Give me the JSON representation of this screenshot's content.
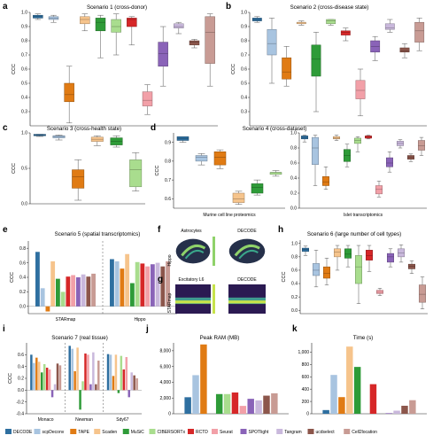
{
  "colors": {
    "DECODE": "#2e6fa0",
    "scpDeconv": "#a8c4e0",
    "TAPE": "#e07b14",
    "Scaden": "#f6c48c",
    "MuSiC": "#2e9b38",
    "CIBERSORTx": "#a9dd8e",
    "RCTD": "#d62728",
    "Seurat": "#f2a0a8",
    "SPOTlight": "#8a63b8",
    "Tangram": "#c9b8dc",
    "ucdselect": "#8c564b",
    "Cell2location": "#c89b94"
  },
  "legend": [
    "DECODE",
    "scpDeconv",
    "TAPE",
    "Scaden",
    "MuSiC",
    "CIBERSORTx",
    "RCTD",
    "Seurat",
    "SPOTlight",
    "Tangram",
    "ucdselect",
    "Cell2location"
  ],
  "panels": {
    "a": {
      "label": "a",
      "title": "Scenario 1 (cross-donor)",
      "ylabel": "CCC"
    },
    "b": {
      "label": "b",
      "title": "Scenario 2 (cross-disease state)",
      "ylabel": "CCC"
    },
    "c": {
      "label": "c",
      "title": "Scenario 3 (cross-health state)",
      "ylabel": "CCC"
    },
    "d": {
      "label": "d",
      "title": "Scenario 4 (cross-dataset)",
      "ylabel": "CCC",
      "sub1": "Murine cell line proteomics",
      "sub2": "Islet transcriptomics"
    },
    "e": {
      "label": "e",
      "title": "Scenario 5 (spatial transcriptomics)",
      "ylabel": "CCC",
      "groups": [
        "STARmap",
        "Hippo"
      ]
    },
    "f": {
      "label": "f",
      "left_title": "Astrocytes",
      "right_title": "DECODE",
      "ylabel": "Hippo"
    },
    "g": {
      "label": "g",
      "left_title": "Excitatory L6",
      "right_title": "DECODE",
      "ylabel": "STARmap"
    },
    "h": {
      "label": "h",
      "title": "Scenario 6 (large number of cell types)",
      "ylabel": "CCC"
    },
    "i": {
      "label": "i",
      "title": "Scenario 7 (real tissue)",
      "ylabel": "CCC",
      "groups": [
        "Monaco",
        "Newman",
        "Sdy67"
      ]
    },
    "j": {
      "label": "j",
      "title": "Peak RAM (MB)"
    },
    "k": {
      "label": "k",
      "title": "Time (s)"
    }
  },
  "chart_data": [
    {
      "id": "a",
      "type": "box",
      "title": "Scenario 1 (cross-donor)",
      "ylabel": "CCC",
      "ylim": [
        0.2,
        1.0
      ],
      "yticks": [
        0.3,
        0.4,
        0.5,
        0.6,
        0.7,
        0.8,
        0.9,
        1.0
      ],
      "methods": [
        "DECODE",
        "scpDeconv",
        "TAPE",
        "Scaden",
        "MuSiC",
        "CIBERSORTx",
        "RCTD",
        "Seurat",
        "SPOTlight",
        "Tangram",
        "ucdselect",
        "Cell2location"
      ],
      "boxes": [
        [
          0.95,
          0.96,
          0.97,
          0.98,
          0.99
        ],
        [
          0.93,
          0.95,
          0.96,
          0.97,
          0.98
        ],
        [
          0.22,
          0.37,
          0.42,
          0.5,
          0.62
        ],
        [
          0.87,
          0.92,
          0.95,
          0.97,
          0.99
        ],
        [
          0.68,
          0.87,
          0.93,
          0.96,
          0.98
        ],
        [
          0.7,
          0.86,
          0.9,
          0.95,
          0.99
        ],
        [
          0.77,
          0.9,
          0.95,
          0.96,
          0.97
        ],
        [
          0.28,
          0.34,
          0.38,
          0.44,
          0.49
        ],
        [
          0.48,
          0.62,
          0.71,
          0.79,
          0.9
        ],
        [
          0.85,
          0.89,
          0.9,
          0.92,
          0.93
        ],
        [
          0.75,
          0.77,
          0.79,
          0.8,
          0.81
        ],
        [
          0.48,
          0.64,
          0.86,
          0.97,
          0.99
        ]
      ]
    },
    {
      "id": "b",
      "type": "box",
      "title": "Scenario 2 (cross-disease state)",
      "ylabel": "CCC",
      "ylim": [
        0.2,
        1.0
      ],
      "yticks": [
        0.3,
        0.4,
        0.5,
        0.6,
        0.7,
        0.8,
        0.9,
        1.0
      ],
      "methods": [
        "DECODE",
        "scpDeconv",
        "TAPE",
        "Scaden",
        "MuSiC",
        "CIBERSORTx",
        "RCTD",
        "Seurat",
        "SPOTlight",
        "Tangram",
        "ucdselect",
        "Cell2location"
      ],
      "boxes": [
        [
          0.93,
          0.94,
          0.95,
          0.96,
          0.97
        ],
        [
          0.5,
          0.7,
          0.78,
          0.88,
          0.96
        ],
        [
          0.48,
          0.53,
          0.58,
          0.68,
          0.76
        ],
        [
          0.91,
          0.92,
          0.93,
          0.93,
          0.94
        ],
        [
          0.3,
          0.55,
          0.67,
          0.77,
          0.86
        ],
        [
          0.91,
          0.92,
          0.94,
          0.95,
          0.95
        ],
        [
          0.8,
          0.84,
          0.86,
          0.87,
          0.89
        ],
        [
          0.27,
          0.39,
          0.45,
          0.52,
          0.6
        ],
        [
          0.66,
          0.72,
          0.76,
          0.8,
          0.83
        ],
        [
          0.86,
          0.88,
          0.89,
          0.92,
          0.95
        ],
        [
          0.68,
          0.72,
          0.73,
          0.75,
          0.78
        ],
        [
          0.73,
          0.79,
          0.87,
          0.93,
          0.96
        ]
      ]
    },
    {
      "id": "c",
      "type": "box",
      "title": "Scenario 3 (cross-health state)",
      "ylabel": "CCC",
      "ylim": [
        0.0,
        1.0
      ],
      "yticks": [
        0.0,
        0.5,
        1.0
      ],
      "methods": [
        "DECODE",
        "scpDeconv",
        "TAPE",
        "Scaden",
        "MuSiC",
        "CIBERSORTx"
      ],
      "boxes": [
        [
          0.95,
          0.96,
          0.97,
          0.98,
          0.98
        ],
        [
          0.9,
          0.93,
          0.95,
          0.96,
          0.97
        ],
        [
          0.05,
          0.22,
          0.38,
          0.48,
          0.62
        ],
        [
          0.82,
          0.88,
          0.91,
          0.94,
          0.96
        ],
        [
          0.8,
          0.83,
          0.88,
          0.93,
          0.96
        ],
        [
          0.18,
          0.24,
          0.48,
          0.62,
          0.72
        ]
      ]
    },
    {
      "id": "d1",
      "type": "box",
      "title": "Scenario 4 (cross-dataset)",
      "xlabel": "Murine cell line proteomics",
      "ylabel": "CCC",
      "ylim": [
        0.55,
        0.95
      ],
      "yticks": [
        0.6,
        0.7,
        0.8,
        0.9
      ],
      "methods": [
        "DECODE",
        "scpDeconv",
        "TAPE",
        "Scaden",
        "MuSiC",
        "CIBERSORTx"
      ],
      "boxes": [
        [
          0.9,
          0.91,
          0.92,
          0.93,
          0.93
        ],
        [
          0.78,
          0.8,
          0.82,
          0.83,
          0.84
        ],
        [
          0.76,
          0.78,
          0.82,
          0.85,
          0.86
        ],
        [
          0.57,
          0.58,
          0.6,
          0.63,
          0.64
        ],
        [
          0.62,
          0.63,
          0.66,
          0.68,
          0.7
        ],
        [
          0.72,
          0.73,
          0.74,
          0.74,
          0.75
        ]
      ]
    },
    {
      "id": "d2",
      "type": "box",
      "xlabel": "Islet transcriptomics",
      "ylim": [
        0.0,
        1.0
      ],
      "yticks": [
        0.0,
        0.2,
        0.4,
        0.6,
        0.8,
        1.0
      ],
      "methods": [
        "DECODE",
        "scpDeconv",
        "TAPE",
        "Scaden",
        "MuSiC",
        "CIBERSORTx",
        "RCTD",
        "Seurat",
        "SPOTlight",
        "Tangram",
        "ucdselect",
        "Cell2location"
      ],
      "boxes": [
        [
          0.88,
          0.92,
          0.94,
          0.96,
          0.97
        ],
        [
          0.3,
          0.58,
          0.8,
          0.94,
          0.97
        ],
        [
          0.25,
          0.3,
          0.35,
          0.42,
          0.55
        ],
        [
          0.9,
          0.92,
          0.93,
          0.95,
          0.97
        ],
        [
          0.55,
          0.62,
          0.7,
          0.78,
          0.85
        ],
        [
          0.75,
          0.86,
          0.9,
          0.93,
          0.95
        ],
        [
          0.92,
          0.93,
          0.95,
          0.96,
          0.97
        ],
        [
          0.15,
          0.19,
          0.25,
          0.3,
          0.36
        ],
        [
          0.48,
          0.55,
          0.6,
          0.67,
          0.75
        ],
        [
          0.8,
          0.83,
          0.86,
          0.89,
          0.91
        ],
        [
          0.62,
          0.65,
          0.68,
          0.7,
          0.72
        ],
        [
          0.7,
          0.77,
          0.83,
          0.9,
          0.94
        ]
      ]
    },
    {
      "id": "e",
      "type": "bar",
      "title": "Scenario 5 (spatial transcriptomics)",
      "ylabel": "CCC",
      "ylim": [
        -0.1,
        0.9
      ],
      "yticks": [
        0.0,
        0.2,
        0.4,
        0.6,
        0.8
      ],
      "groups": [
        "STARmap",
        "Hippo"
      ],
      "methods": [
        "DECODE",
        "scpDeconv",
        "TAPE",
        "Scaden",
        "MuSiC",
        "CIBERSORTx",
        "RCTD",
        "Seurat",
        "SPOTlight",
        "Tangram",
        "ucdselect",
        "Cell2location"
      ],
      "values": [
        [
          0.75,
          0.25,
          -0.07,
          0.62,
          0.38,
          0.2,
          0.41,
          0.43,
          0.4,
          0.44,
          0.41,
          0.45
        ],
        [
          0.65,
          0.62,
          0.52,
          0.72,
          0.32,
          0.61,
          0.59,
          0.55,
          0.58,
          0.6,
          0.55,
          0.62
        ]
      ]
    },
    {
      "id": "h",
      "type": "box",
      "title": "Scenario 6 (large number of cell types)",
      "ylabel": "CCC",
      "ylim": [
        -0.05,
        1.05
      ],
      "yticks": [
        0.0,
        0.2,
        0.4,
        0.6,
        0.8,
        1.0
      ],
      "methods": [
        "DECODE",
        "scpDeconv",
        "TAPE",
        "Scaden",
        "MuSiC",
        "CIBERSORTx",
        "RCTD",
        "Seurat",
        "SPOTlight",
        "Tangram",
        "ucdselect",
        "Cell2location"
      ],
      "boxes": [
        [
          0.82,
          0.88,
          0.91,
          0.93,
          0.96
        ],
        [
          0.35,
          0.52,
          0.6,
          0.7,
          0.9
        ],
        [
          0.38,
          0.48,
          0.55,
          0.65,
          0.78
        ],
        [
          0.6,
          0.8,
          0.87,
          0.92,
          0.97
        ],
        [
          0.65,
          0.78,
          0.84,
          0.92,
          0.97
        ],
        [
          0.1,
          0.4,
          0.65,
          0.82,
          0.97
        ],
        [
          0.58,
          0.75,
          0.82,
          0.9,
          0.97
        ],
        [
          0.22,
          0.25,
          0.27,
          0.3,
          0.33
        ],
        [
          0.65,
          0.72,
          0.8,
          0.85,
          0.92
        ],
        [
          0.72,
          0.8,
          0.86,
          0.92,
          0.98
        ],
        [
          0.55,
          0.62,
          0.66,
          0.69,
          0.74
        ],
        [
          0.02,
          0.12,
          0.24,
          0.38,
          0.5
        ]
      ]
    },
    {
      "id": "i",
      "type": "bar",
      "title": "Scenario 7 (real tissue)",
      "ylabel": "CCC",
      "ylim": [
        -0.4,
        0.8
      ],
      "yticks": [
        -0.4,
        -0.2,
        0.0,
        0.2,
        0.4,
        0.6
      ],
      "groups": [
        "Monaco",
        "Newman",
        "Sdy67"
      ],
      "methods": [
        "DECODE",
        "scpDeconv",
        "TAPE",
        "Scaden",
        "MuSiC",
        "CIBERSORTx",
        "RCTD",
        "Seurat",
        "SPOTlight",
        "Tangram",
        "ucdselect",
        "Cell2location"
      ],
      "values": [
        [
          0.6,
          0.46,
          0.55,
          0.48,
          0.3,
          0.44,
          0.38,
          0.35,
          -0.12,
          0.1,
          0.45,
          0.42
        ],
        [
          0.75,
          0.7,
          0.32,
          0.72,
          -0.33,
          0.15,
          0.62,
          0.6,
          0.1,
          0.64,
          0.1,
          0.5
        ],
        [
          0.61,
          0.6,
          0.24,
          0.6,
          -0.05,
          0.58,
          0.35,
          0.56,
          -0.12,
          0.3,
          0.25,
          0.2
        ]
      ]
    },
    {
      "id": "j",
      "type": "bar",
      "title": "Peak RAM (MB)",
      "ylim": [
        0,
        9000
      ],
      "yticks": [
        0,
        2000,
        4000,
        6000,
        8000
      ],
      "methods": [
        "DECODE",
        "scpDeconv",
        "TAPE",
        "Scaden",
        "MuSiC",
        "CIBERSORTx",
        "RCTD",
        "Seurat",
        "SPOTlight",
        "Tangram",
        "ucdselect",
        "Cell2location"
      ],
      "values": [
        2100,
        4900,
        8800,
        null,
        2500,
        2500,
        2700,
        1000,
        1900,
        1700,
        2300,
        2600
      ]
    },
    {
      "id": "k",
      "type": "bar",
      "title": "Time (s)",
      "ylim": [
        0,
        1150
      ],
      "yticks": [
        0,
        200,
        400,
        600,
        800,
        1000
      ],
      "methods": [
        "DECODE",
        "scpDeconv",
        "TAPE",
        "Scaden",
        "MuSiC",
        "CIBERSORTx",
        "RCTD",
        "Seurat",
        "SPOTlight",
        "Tangram",
        "ucdselect",
        "Cell2location"
      ],
      "values": [
        60,
        630,
        270,
        1090,
        760,
        null,
        480,
        null,
        10,
        50,
        130,
        220
      ]
    }
  ]
}
